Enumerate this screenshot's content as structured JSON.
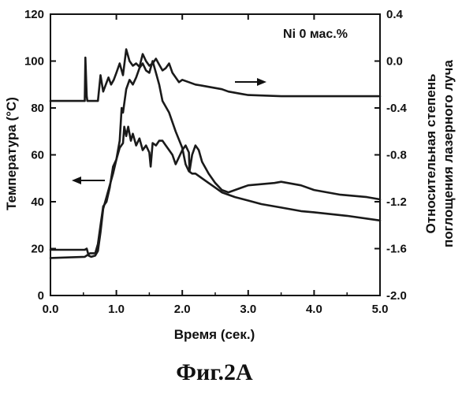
{
  "caption": "Фиг.2А",
  "chart_data": {
    "type": "line",
    "annotation": "Ni 0 мас.%",
    "xlabel": "Время (сек.)",
    "ylabel_left": "Температура (°C)",
    "ylabel_right_lines": [
      "Относительная степень",
      "поглощения лазерного луча"
    ],
    "xlim": [
      0,
      5
    ],
    "ylim_left": [
      0,
      120
    ],
    "ylim_right": [
      -2.0,
      0.4
    ],
    "x_ticks": [
      0,
      1,
      2,
      3,
      4,
      5
    ],
    "x_tick_labels": [
      "0.0",
      "1.0",
      "2.0",
      "3.0",
      "4.0",
      "5.0"
    ],
    "y_left_ticks": [
      0,
      20,
      40,
      60,
      80,
      100,
      120
    ],
    "y_left_tick_labels": [
      "0",
      "20",
      "40",
      "60",
      "80",
      "100",
      "120"
    ],
    "y_right_ticks": [
      -2.0,
      -1.6,
      -1.2,
      -0.8,
      -0.4,
      0.0,
      0.4
    ],
    "y_right_tick_labels": [
      "-2.0",
      "-1.6",
      "-1.2",
      "-0.8",
      "-0.4",
      "0.0",
      "0.4"
    ],
    "grid": false,
    "series": [
      {
        "axis": "right",
        "x": [
          0.0,
          0.52,
          0.53,
          0.55,
          0.56,
          0.6,
          0.64,
          0.72,
          0.76,
          0.8,
          0.84,
          0.88,
          0.92,
          0.96,
          1.0,
          1.05,
          1.1,
          1.15,
          1.2,
          1.25,
          1.3,
          1.35,
          1.4,
          1.45,
          1.5,
          1.55,
          1.6,
          1.65,
          1.7,
          1.75,
          1.8,
          1.85,
          1.9,
          1.95,
          2.0,
          2.1,
          2.2,
          2.3,
          2.4,
          2.5,
          2.6,
          2.7,
          2.8,
          2.9,
          3.0,
          3.5,
          4.0,
          4.5,
          5.0
        ],
        "y": [
          -0.34,
          -0.34,
          0.03,
          -0.3,
          -0.34,
          -0.34,
          -0.34,
          -0.34,
          -0.12,
          -0.26,
          -0.2,
          -0.14,
          -0.2,
          -0.16,
          -0.1,
          -0.02,
          -0.12,
          0.1,
          0.0,
          -0.04,
          -0.02,
          -0.05,
          0.06,
          0.0,
          -0.04,
          -0.02,
          0.02,
          -0.03,
          -0.08,
          -0.06,
          -0.02,
          -0.1,
          -0.14,
          -0.18,
          -0.16,
          -0.18,
          -0.2,
          -0.21,
          -0.22,
          -0.23,
          -0.24,
          -0.26,
          -0.27,
          -0.28,
          -0.29,
          -0.3,
          -0.3,
          -0.3,
          -0.3
        ]
      },
      {
        "axis": "left",
        "x": [
          0.0,
          0.52,
          0.55,
          0.58,
          0.62,
          0.68,
          0.72,
          0.76,
          0.8,
          0.85,
          0.9,
          0.95,
          1.0,
          1.05,
          1.08,
          1.1,
          1.15,
          1.2,
          1.25,
          1.3,
          1.35,
          1.4,
          1.45,
          1.5,
          1.55,
          1.6,
          1.65,
          1.7,
          1.8,
          1.9,
          2.0,
          2.05,
          2.1,
          2.15,
          2.2,
          2.3,
          2.4,
          2.5,
          2.6,
          2.7,
          2.8,
          3.0,
          3.2,
          3.5,
          3.8,
          4.0,
          4.5,
          5.0
        ],
        "y": [
          19.5,
          19.5,
          20.0,
          17.0,
          16.5,
          17.0,
          19.0,
          27.0,
          37.0,
          42.0,
          47.0,
          52.0,
          58.0,
          66.0,
          80.0,
          78.0,
          88.0,
          92.0,
          90.0,
          93.0,
          97.0,
          99.0,
          96.0,
          95.0,
          100.0,
          95.0,
          90.0,
          83.0,
          78.0,
          70.0,
          63.0,
          56.0,
          53.0,
          52.0,
          52.0,
          50.0,
          48.0,
          46.0,
          44.0,
          43.0,
          42.0,
          40.5,
          39.0,
          37.5,
          36.0,
          35.5,
          34.0,
          32.0
        ]
      },
      {
        "axis": "left",
        "x": [
          0.0,
          0.52,
          0.6,
          0.68,
          0.72,
          0.76,
          0.8,
          0.85,
          0.9,
          0.95,
          1.0,
          1.05,
          1.1,
          1.12,
          1.15,
          1.18,
          1.22,
          1.25,
          1.3,
          1.35,
          1.4,
          1.45,
          1.5,
          1.52,
          1.55,
          1.6,
          1.65,
          1.7,
          1.75,
          1.8,
          1.85,
          1.9,
          2.0,
          2.05,
          2.1,
          2.11,
          2.15,
          2.2,
          2.25,
          2.3,
          2.4,
          2.5,
          2.6,
          2.7,
          2.8,
          2.9,
          3.0,
          3.2,
          3.4,
          3.5,
          3.6,
          3.8,
          4.0,
          4.2,
          4.4,
          4.6,
          4.8,
          5.0
        ],
        "y": [
          16.0,
          16.5,
          18.0,
          18.0,
          22.0,
          30.0,
          38.0,
          40.0,
          46.0,
          55.0,
          58.0,
          63.0,
          65.0,
          72.0,
          68.0,
          72.0,
          66.0,
          69.0,
          64.0,
          67.0,
          62.0,
          64.0,
          61.0,
          55.0,
          65.0,
          64.0,
          66.0,
          66.0,
          64.0,
          62.0,
          60.0,
          56.0,
          62.0,
          64.0,
          61.0,
          53.0,
          60.0,
          64.0,
          62.0,
          57.0,
          52.0,
          48.0,
          45.0,
          44.0,
          45.0,
          46.0,
          47.0,
          47.5,
          48.0,
          48.5,
          48.0,
          47.0,
          45.0,
          44.0,
          43.0,
          42.5,
          42.0,
          41.0
        ]
      }
    ]
  }
}
